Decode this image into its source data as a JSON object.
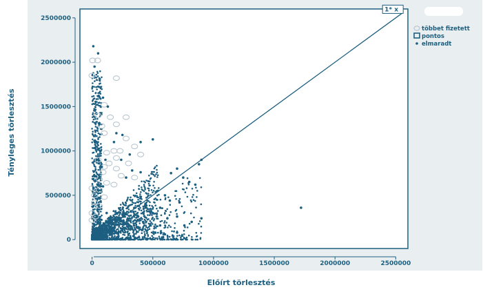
{
  "chart_data": {
    "type": "scatter",
    "xlabel": "Előírt törlesztés",
    "ylabel": "Tényleges törlesztés",
    "xlim": [
      -100000,
      2600000
    ],
    "ylim": [
      -100000,
      2600000
    ],
    "x_ticks": [
      0,
      500000,
      1000000,
      1500000,
      2000000,
      2500000
    ],
    "y_ticks": [
      0,
      500000,
      1000000,
      1500000,
      2000000,
      2500000
    ],
    "x_tick_labels": [
      "0",
      "500000",
      "1000000",
      "1500000",
      "2000000",
      "2500000"
    ],
    "y_tick_labels": [
      "0",
      "500000",
      "1000000",
      "1500000",
      "2000000",
      "2500000"
    ],
    "reference_line": {
      "from": [
        0,
        0
      ],
      "to": [
        2550000,
        2550000
      ],
      "label": "1* x"
    },
    "legend": {
      "position": "top-right",
      "entries": [
        {
          "name": "többet fizetett",
          "marker": "open-circle",
          "color": "#b9c6cf"
        },
        {
          "name": "pontos",
          "marker": "open-square",
          "color": "#1d5f80"
        },
        {
          "name": "elmaradt",
          "marker": "dot",
          "color": "#1d5f80"
        }
      ]
    },
    "series": [
      {
        "name": "többet fizetett",
        "x": [
          [
            5000,
            2020000
          ],
          [
            45000,
            2020000
          ],
          [
            0,
            1850000
          ],
          [
            200000,
            1820000
          ],
          [
            100000,
            1520000
          ],
          [
            50000,
            1400000
          ],
          [
            150000,
            1380000
          ],
          [
            280000,
            1380000
          ],
          [
            80000,
            1280000
          ],
          [
            200000,
            1300000
          ],
          [
            100000,
            1200000
          ],
          [
            280000,
            1140000
          ],
          [
            180000,
            1000000
          ],
          [
            230000,
            1000000
          ],
          [
            400000,
            960000
          ],
          [
            120000,
            980000
          ],
          [
            350000,
            1050000
          ],
          [
            50000,
            900000
          ],
          [
            200000,
            920000
          ],
          [
            140000,
            860000
          ],
          [
            300000,
            860000
          ],
          [
            100000,
            820000
          ],
          [
            200000,
            800000
          ],
          [
            90000,
            760000
          ],
          [
            240000,
            720000
          ],
          [
            350000,
            700000
          ],
          [
            60000,
            680000
          ],
          [
            120000,
            640000
          ],
          [
            180000,
            620000
          ],
          [
            0,
            580000
          ],
          [
            60000,
            560000
          ],
          [
            20000,
            500000
          ],
          [
            100000,
            480000
          ],
          [
            20000,
            420000
          ],
          [
            60000,
            380000
          ],
          [
            0,
            300000
          ],
          [
            30000,
            260000
          ],
          [
            0,
            220000
          ]
        ]
      },
      {
        "name": "elmaradt",
        "x": [
          [
            10000,
            2180000
          ],
          [
            50000,
            2100000
          ],
          [
            20000,
            1950000
          ],
          [
            90000,
            1600000
          ],
          [
            130000,
            1500000
          ],
          [
            60000,
            1300000
          ],
          [
            200000,
            1200000
          ],
          [
            250000,
            1180000
          ],
          [
            180000,
            1100000
          ],
          [
            400000,
            1100000
          ],
          [
            500000,
            1130000
          ],
          [
            310000,
            960000
          ],
          [
            240000,
            900000
          ],
          [
            80000,
            820000
          ],
          [
            330000,
            780000
          ],
          [
            400000,
            760000
          ],
          [
            280000,
            700000
          ],
          [
            650000,
            750000
          ],
          [
            700000,
            800000
          ],
          [
            750000,
            700000
          ],
          [
            800000,
            650000
          ],
          [
            850000,
            620000
          ],
          [
            880000,
            850000
          ],
          [
            900000,
            900000
          ],
          [
            600000,
            500000
          ],
          [
            640000,
            440000
          ],
          [
            720000,
            420000
          ],
          [
            560000,
            360000
          ],
          [
            500000,
            300000
          ],
          [
            620000,
            240000
          ],
          [
            700000,
            260000
          ],
          [
            760000,
            160000
          ],
          [
            820000,
            200000
          ],
          [
            900000,
            240000
          ],
          [
            1720000,
            360000
          ],
          [
            380000,
            140000
          ],
          [
            450000,
            100000
          ],
          [
            520000,
            80000
          ],
          [
            600000,
            60000
          ],
          [
            700000,
            80000
          ],
          [
            560000,
            160000
          ],
          [
            300000,
            60000
          ],
          [
            250000,
            120000
          ],
          [
            200000,
            20000
          ],
          [
            150000,
            80000
          ],
          [
            100000,
            40000
          ],
          [
            50000,
            100000
          ],
          [
            0,
            10000
          ],
          [
            340000,
            40000
          ],
          [
            420000,
            200000
          ],
          [
            470000,
            320000
          ],
          [
            380000,
            260000
          ],
          [
            320000,
            320000
          ],
          [
            260000,
            280000
          ],
          [
            200000,
            220000
          ],
          [
            150000,
            180000
          ],
          [
            120000,
            300000
          ],
          [
            90000,
            600000
          ],
          [
            60000,
            700000
          ],
          [
            40000,
            900000
          ],
          [
            30000,
            1100000
          ],
          [
            70000,
            1000000
          ],
          [
            110000,
            900000
          ]
        ]
      }
    ]
  }
}
